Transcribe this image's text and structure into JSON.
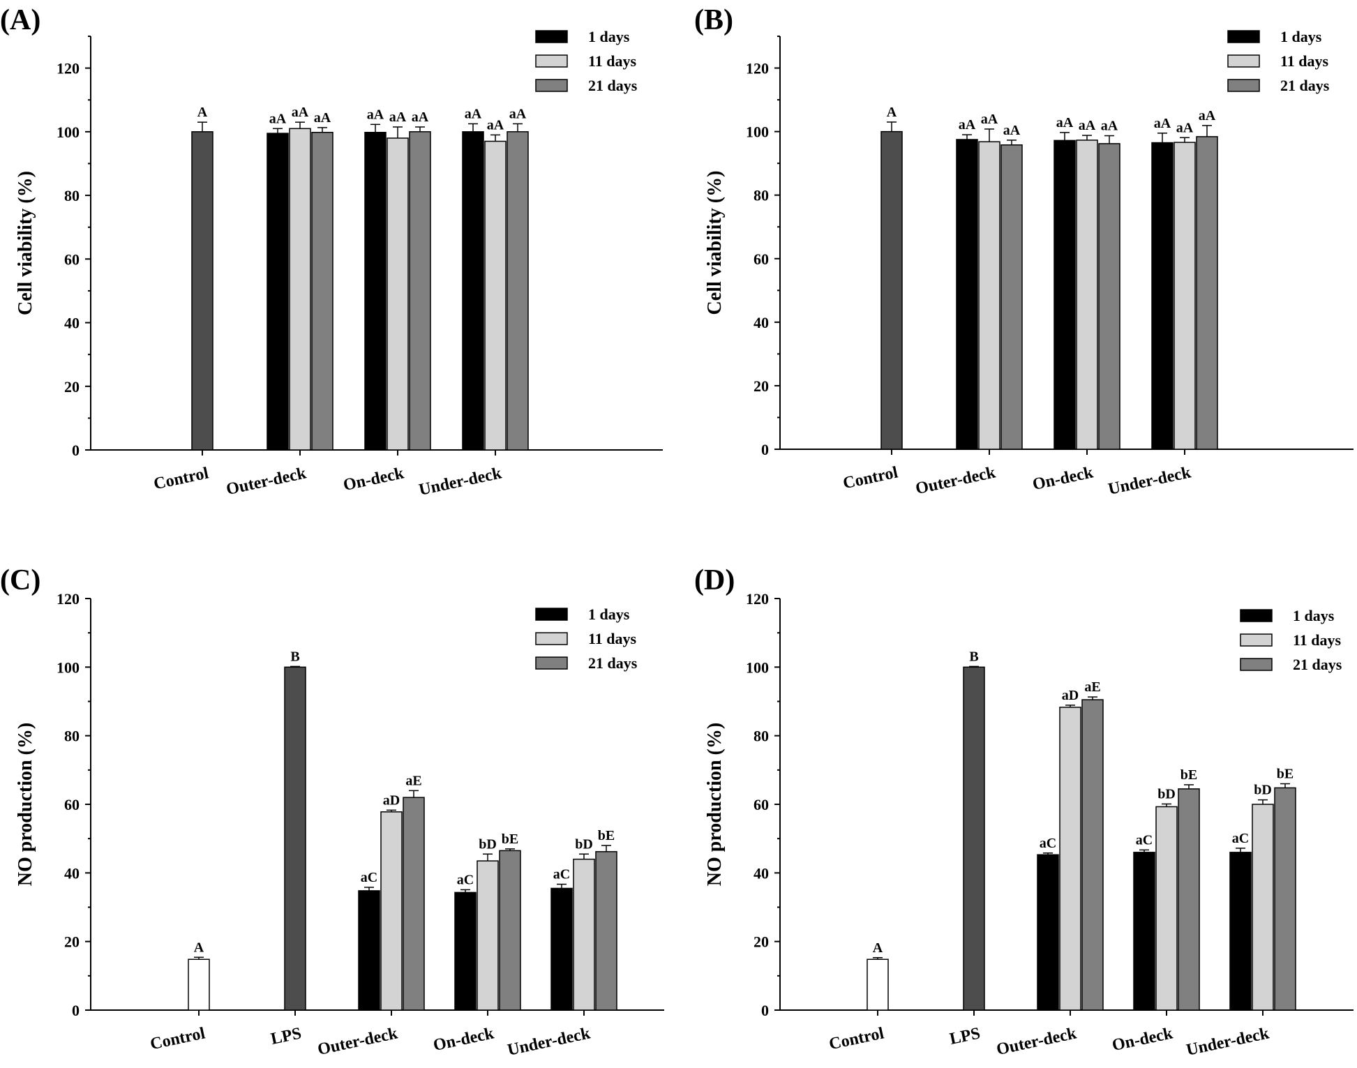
{
  "colors": {
    "control": "#4d4d4d",
    "day1": "#000000",
    "day11": "#d3d3d3",
    "day21": "#808080",
    "white": "#ffffff"
  },
  "chart_data": [
    {
      "type": "bar",
      "panel": "(A)",
      "ylabel": "Cell viability (%)",
      "ylim": [
        0,
        130
      ],
      "yticks": [
        0,
        20,
        40,
        60,
        80,
        100,
        120
      ],
      "legend": [
        "1 days",
        "11 days",
        "21 days"
      ],
      "legend_position": "top-right",
      "categories": [
        "Control",
        "Outer-deck",
        "On-deck",
        "Under-deck"
      ],
      "groups": [
        {
          "category": "Control",
          "bars": [
            {
              "series": "control",
              "value": 100,
              "err": 3,
              "label": "A"
            }
          ]
        },
        {
          "category": "Outer-deck",
          "bars": [
            {
              "series": "day1",
              "value": 99.5,
              "err": 1.5,
              "label": "aA"
            },
            {
              "series": "day11",
              "value": 101,
              "err": 2,
              "label": "aA"
            },
            {
              "series": "day21",
              "value": 99.8,
              "err": 1.5,
              "label": "aA"
            }
          ]
        },
        {
          "category": "On-deck",
          "bars": [
            {
              "series": "day1",
              "value": 99.8,
              "err": 2.5,
              "label": "aA"
            },
            {
              "series": "day11",
              "value": 98,
              "err": 3.5,
              "label": "aA"
            },
            {
              "series": "day21",
              "value": 100,
              "err": 1.5,
              "label": "aA"
            }
          ]
        },
        {
          "category": "Under-deck",
          "bars": [
            {
              "series": "day1",
              "value": 100,
              "err": 2.5,
              "label": "aA"
            },
            {
              "series": "day11",
              "value": 97,
              "err": 2,
              "label": "aA"
            },
            {
              "series": "day21",
              "value": 100,
              "err": 2.5,
              "label": "aA"
            }
          ]
        }
      ]
    },
    {
      "type": "bar",
      "panel": "(B)",
      "ylabel": "Cell viability (%)",
      "ylim": [
        0,
        130
      ],
      "yticks": [
        0,
        20,
        40,
        60,
        80,
        100,
        120
      ],
      "legend": [
        "1 days",
        "11 days",
        "21 days"
      ],
      "legend_position": "top-right",
      "categories": [
        "Control",
        "Outer-deck",
        "On-deck",
        "Under-deck"
      ],
      "groups": [
        {
          "category": "Control",
          "bars": [
            {
              "series": "control",
              "value": 100,
              "err": 3,
              "label": "A"
            }
          ]
        },
        {
          "category": "Outer-deck",
          "bars": [
            {
              "series": "day1",
              "value": 97.5,
              "err": 1.5,
              "label": "aA"
            },
            {
              "series": "day11",
              "value": 96.8,
              "err": 4,
              "label": "aA"
            },
            {
              "series": "day21",
              "value": 95.8,
              "err": 1.5,
              "label": "aA"
            }
          ]
        },
        {
          "category": "On-deck",
          "bars": [
            {
              "series": "day1",
              "value": 97.2,
              "err": 2.5,
              "label": "aA"
            },
            {
              "series": "day11",
              "value": 97.3,
              "err": 1.5,
              "label": "aA"
            },
            {
              "series": "day21",
              "value": 96.2,
              "err": 2.5,
              "label": "aA"
            }
          ]
        },
        {
          "category": "Under-deck",
          "bars": [
            {
              "series": "day1",
              "value": 96.5,
              "err": 3,
              "label": "aA"
            },
            {
              "series": "day11",
              "value": 96.6,
              "err": 1.5,
              "label": "aA"
            },
            {
              "series": "day21",
              "value": 98.4,
              "err": 3.5,
              "label": "aA"
            }
          ]
        }
      ]
    },
    {
      "type": "bar",
      "panel": "(C)",
      "ylabel": "NO production (%)",
      "ylim": [
        0,
        120
      ],
      "yticks": [
        0,
        20,
        40,
        60,
        80,
        100,
        120
      ],
      "legend": [
        "1 days",
        "11 days",
        "21 days"
      ],
      "legend_position": "top-right",
      "categories": [
        "Control",
        "LPS",
        "Outer-deck",
        "On-deck",
        "Under-deck"
      ],
      "groups": [
        {
          "category": "Control",
          "bars": [
            {
              "series": "white",
              "value": 14.8,
              "err": 0.6,
              "label": "A"
            }
          ]
        },
        {
          "category": "LPS",
          "bars": [
            {
              "series": "control",
              "value": 100,
              "err": 0.2,
              "label": "B"
            }
          ]
        },
        {
          "category": "Outer-deck",
          "bars": [
            {
              "series": "day1",
              "value": 34.8,
              "err": 1,
              "label": "aC"
            },
            {
              "series": "day11",
              "value": 57.8,
              "err": 0.5,
              "label": "aD"
            },
            {
              "series": "day21",
              "value": 62,
              "err": 2,
              "label": "aE"
            }
          ]
        },
        {
          "category": "On-deck",
          "bars": [
            {
              "series": "day1",
              "value": 34.3,
              "err": 0.8,
              "label": "aC"
            },
            {
              "series": "day11",
              "value": 43.5,
              "err": 2,
              "label": "bD"
            },
            {
              "series": "day21",
              "value": 46.5,
              "err": 0.5,
              "label": "bE"
            }
          ]
        },
        {
          "category": "Under-deck",
          "bars": [
            {
              "series": "day1",
              "value": 35.5,
              "err": 1.2,
              "label": "aC"
            },
            {
              "series": "day11",
              "value": 44,
              "err": 1.5,
              "label": "bD"
            },
            {
              "series": "day21",
              "value": 46.2,
              "err": 1.8,
              "label": "bE"
            }
          ]
        }
      ]
    },
    {
      "type": "bar",
      "panel": "(D)",
      "ylabel": "NO production (%)",
      "ylim": [
        0,
        120
      ],
      "yticks": [
        0,
        20,
        40,
        60,
        80,
        100,
        120
      ],
      "legend": [
        "1 days",
        "11 days",
        "21 days"
      ],
      "legend_position": "top-right",
      "categories": [
        "Control",
        "LPS",
        "Outer-deck",
        "On-deck",
        "Under-deck"
      ],
      "groups": [
        {
          "category": "Control",
          "bars": [
            {
              "series": "white",
              "value": 14.8,
              "err": 0.5,
              "label": "A"
            }
          ]
        },
        {
          "category": "LPS",
          "bars": [
            {
              "series": "control",
              "value": 100,
              "err": 0.2,
              "label": "B"
            }
          ]
        },
        {
          "category": "Outer-deck",
          "bars": [
            {
              "series": "day1",
              "value": 45.3,
              "err": 0.5,
              "label": "aC"
            },
            {
              "series": "day11",
              "value": 88.3,
              "err": 0.6,
              "label": "aD"
            },
            {
              "series": "day21",
              "value": 90.5,
              "err": 0.8,
              "label": "aE"
            }
          ]
        },
        {
          "category": "On-deck",
          "bars": [
            {
              "series": "day1",
              "value": 46,
              "err": 0.7,
              "label": "aC"
            },
            {
              "series": "day11",
              "value": 59.3,
              "err": 0.8,
              "label": "bD"
            },
            {
              "series": "day21",
              "value": 64.5,
              "err": 1.2,
              "label": "bE"
            }
          ]
        },
        {
          "category": "Under-deck",
          "bars": [
            {
              "series": "day1",
              "value": 46,
              "err": 1.2,
              "label": "aC"
            },
            {
              "series": "day11",
              "value": 60,
              "err": 1.3,
              "label": "bD"
            },
            {
              "series": "day21",
              "value": 64.8,
              "err": 1.2,
              "label": "bE"
            }
          ]
        }
      ]
    }
  ]
}
